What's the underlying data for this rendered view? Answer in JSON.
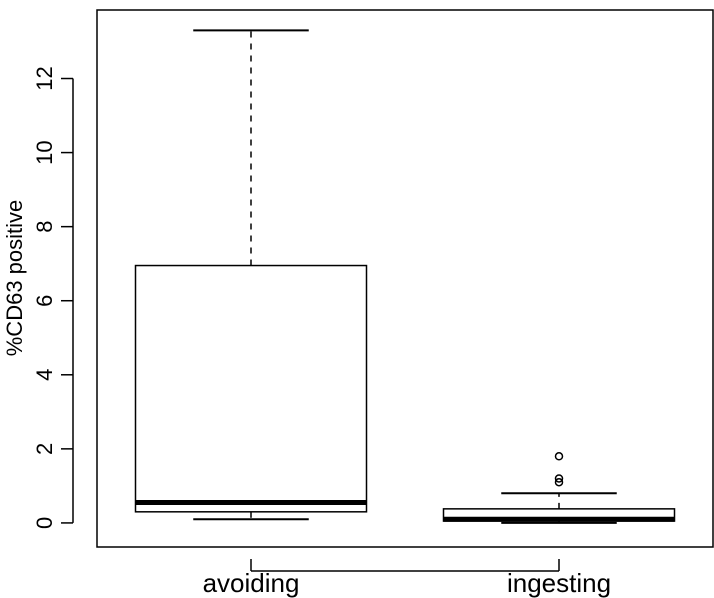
{
  "chart_data": {
    "type": "boxplot",
    "title": "",
    "xlabel": "",
    "ylabel": "%CD63 positive",
    "ylim": [
      -0.65,
      13.85
    ],
    "yticks": [
      0,
      2,
      4,
      6,
      8,
      10,
      12
    ],
    "grid": false,
    "categories": [
      "avoiding",
      "ingesting"
    ],
    "boxes": [
      {
        "name": "avoiding",
        "whisker_low": 0.1,
        "q1": 0.3,
        "median": 0.55,
        "q3": 6.95,
        "whisker_high": 13.3,
        "outliers": []
      },
      {
        "name": "ingesting",
        "whisker_low": 0.0,
        "q1": 0.05,
        "median": 0.1,
        "q3": 0.38,
        "whisker_high": 0.8,
        "outliers": [
          1.1,
          1.2,
          1.8
        ]
      }
    ]
  }
}
